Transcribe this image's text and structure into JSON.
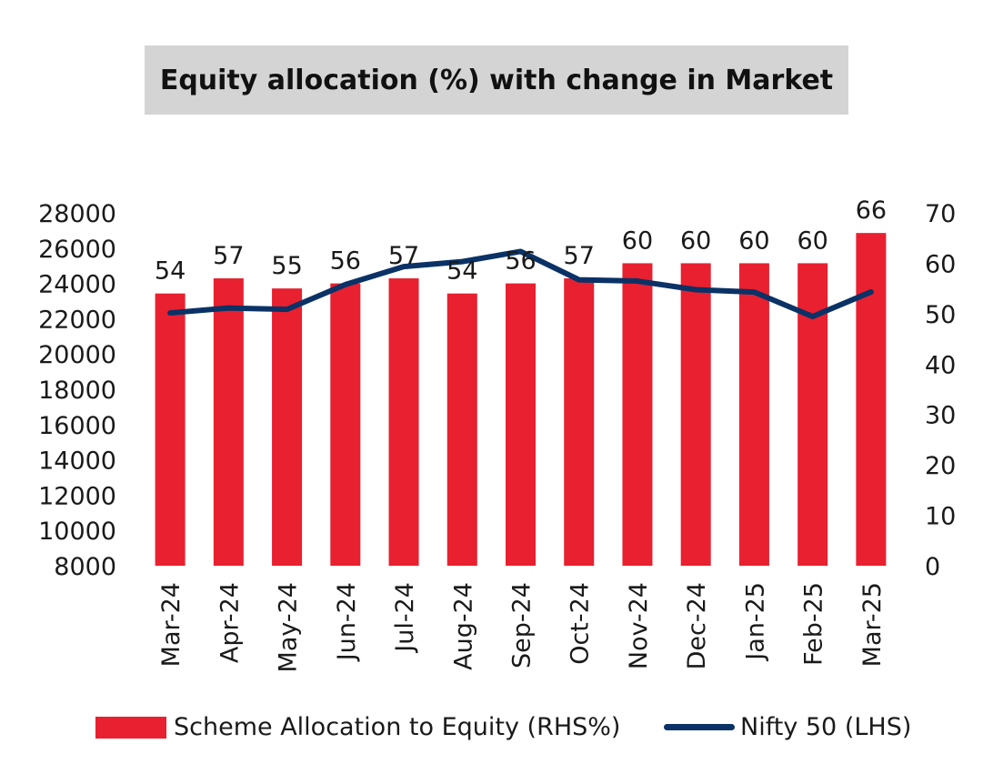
{
  "chart_data": {
    "type": "bar+line",
    "title": "Equity allocation (%) with change in Market",
    "categories": [
      "Mar-24",
      "Apr-24",
      "May-24",
      "Jun-24",
      "Jul-24",
      "Aug-24",
      "Sep-24",
      "Oct-24",
      "Nov-24",
      "Dec-24",
      "Jan-25",
      "Feb-25",
      "Mar-25"
    ],
    "series": [
      {
        "name": "Scheme Allocation to Equity (RHS%)",
        "type": "bar",
        "axis": "right",
        "color": "#e8202f",
        "values": [
          54,
          57,
          55,
          56,
          57,
          54,
          56,
          57,
          60,
          60,
          60,
          60,
          66
        ]
      },
      {
        "name": "Nifty 50 (LHS)",
        "type": "line",
        "axis": "left",
        "color": "#0a3266",
        "values": [
          22327,
          22605,
          22531,
          23935,
          24951,
          25236,
          25811,
          24205,
          24131,
          23645,
          23509,
          22125,
          23519
        ]
      }
    ],
    "left_axis": {
      "min": 8000,
      "max": 28000,
      "ticks": [
        8000,
        10000,
        12000,
        14000,
        16000,
        18000,
        20000,
        22000,
        24000,
        26000,
        28000
      ]
    },
    "right_axis": {
      "min": 0,
      "max": 70,
      "ticks": [
        0,
        10,
        20,
        30,
        40,
        50,
        60,
        70
      ]
    },
    "bar_labels": [
      "54",
      "57",
      "55",
      "56",
      "57",
      "54",
      "56",
      "57",
      "60",
      "60",
      "60",
      "60",
      "66"
    ],
    "grid": false,
    "legend_position": "bottom"
  }
}
